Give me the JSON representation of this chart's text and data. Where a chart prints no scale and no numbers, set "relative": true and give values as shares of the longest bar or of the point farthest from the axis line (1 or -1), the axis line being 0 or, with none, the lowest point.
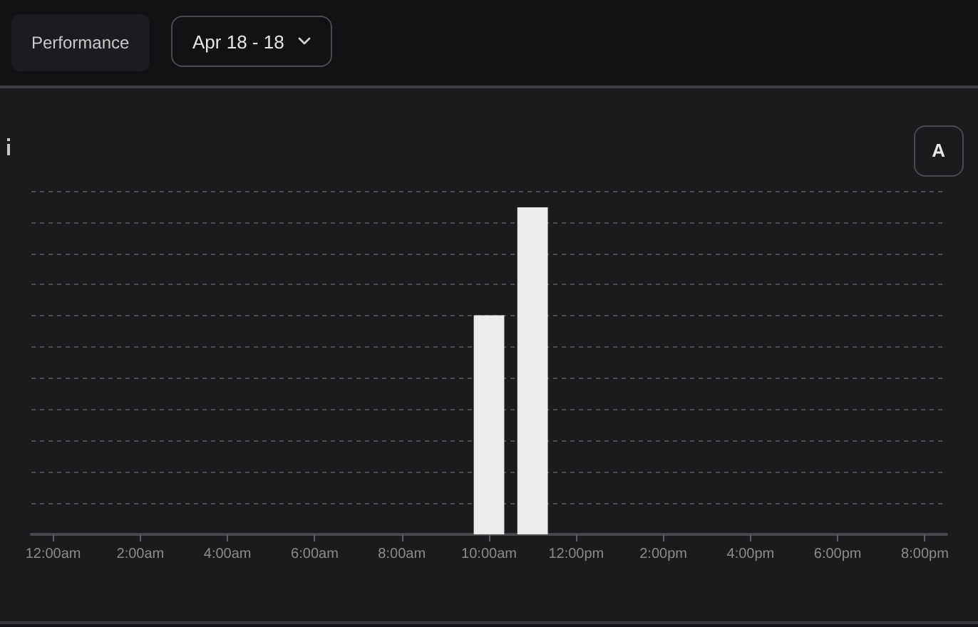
{
  "chart_data": {
    "type": "bar",
    "annotations": [
      "Performance",
      "Apr 18 - 18",
      "A"
    ],
    "categories": [
      "12:00am",
      null,
      "2:00am",
      null,
      "4:00am",
      null,
      "6:00am",
      null,
      "8:00am",
      null,
      "10:00am",
      null,
      "12:00pm",
      null,
      "2:00pm",
      null,
      "4:00pm",
      null,
      "6:00pm",
      null,
      "8:00pm"
    ],
    "values": [
      null,
      null,
      null,
      null,
      null,
      null,
      null,
      null,
      null,
      null,
      0.67,
      1,
      null,
      null,
      null,
      null,
      null,
      null,
      null,
      null,
      null
    ],
    "color": "#ebebeb",
    "relative": true,
    "grid": "y"
  }
}
